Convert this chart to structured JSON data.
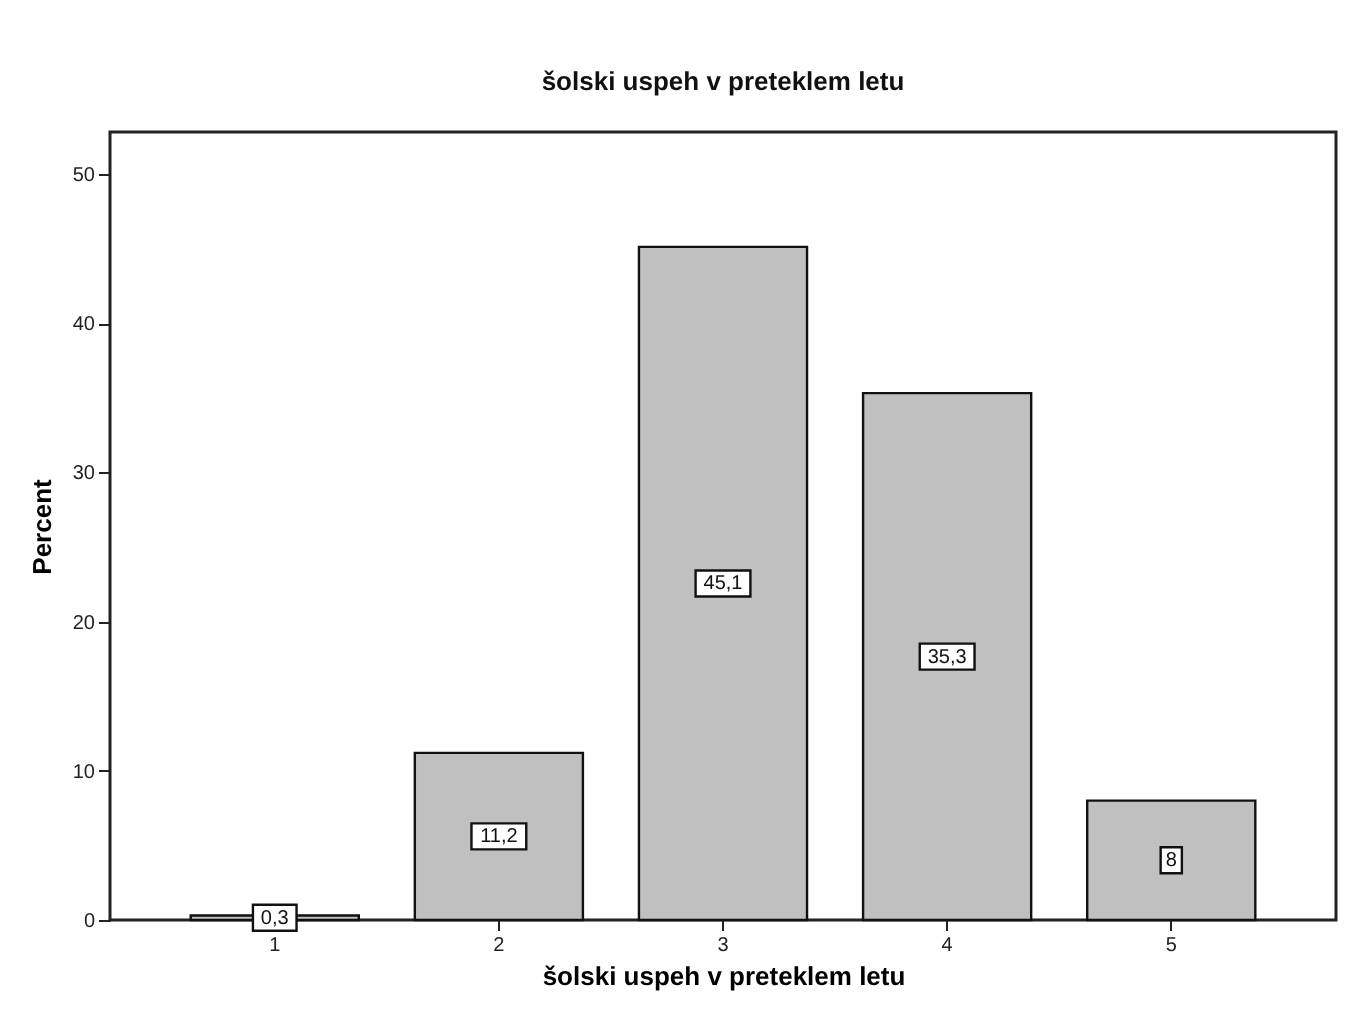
{
  "chart_data": {
    "type": "bar",
    "title": "šolski uspeh v preteklem letu",
    "xlabel": "šolski uspeh v preteklem letu",
    "ylabel": "Percent",
    "categories": [
      "1",
      "2",
      "3",
      "4",
      "5"
    ],
    "values": [
      0.3,
      11.2,
      45.1,
      35.3,
      8
    ],
    "value_labels": [
      "0,3",
      "11,2",
      "45,1",
      "35,3",
      "8"
    ],
    "color": "#c0c0c0",
    "ylim": [
      0,
      52.8
    ],
    "yticks": [
      0,
      10,
      20,
      30,
      40,
      50
    ],
    "grid": false
  }
}
